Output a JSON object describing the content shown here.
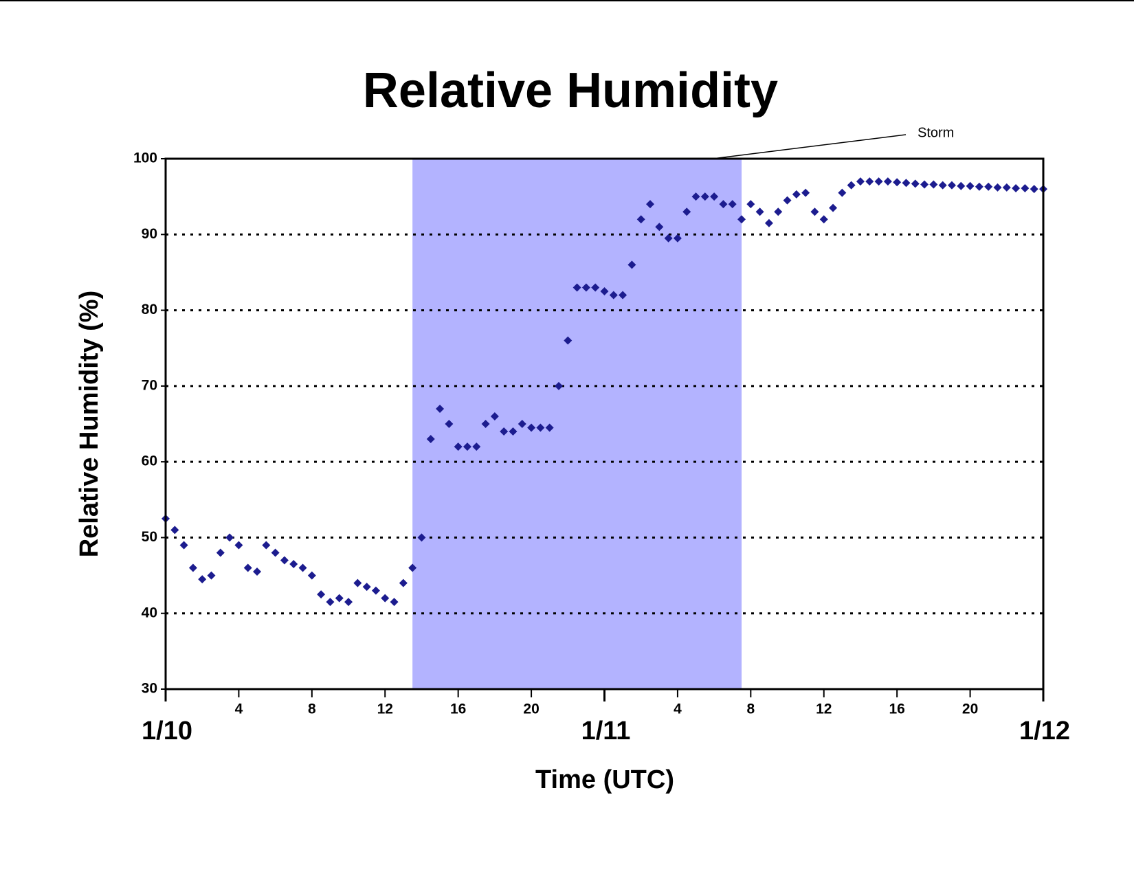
{
  "chart_data": {
    "type": "scatter",
    "title": "Relative Humidity",
    "y_label": "Relative Humidity (%)",
    "x_label": "Time (UTC)",
    "annotation": "Storm",
    "storm_range": [
      13.5,
      31.5
    ],
    "storm_color": "#b3b3ff",
    "xlim": [
      0,
      48
    ],
    "ylim": [
      30,
      100
    ],
    "yticks": [
      30,
      40,
      50,
      60,
      70,
      80,
      90,
      100
    ],
    "grid": true,
    "xticks": [
      4,
      8,
      12,
      16,
      20,
      {
        "value": 28,
        "label": "4"
      },
      {
        "value": 32,
        "label": "8"
      },
      {
        "value": 36,
        "label": "12"
      },
      {
        "value": 40,
        "label": "16"
      },
      {
        "value": 44,
        "label": "20"
      }
    ],
    "day_ticks": [
      {
        "value": 0,
        "label": "1/10"
      },
      {
        "value": 24,
        "label": "1/11"
      },
      {
        "value": 48,
        "label": "1/12"
      }
    ],
    "series": [
      {
        "name": "Relative Humidity",
        "color": "#1c1c8f",
        "x": [
          0,
          0.5,
          1,
          1.5,
          2,
          2.5,
          3,
          3.5,
          4,
          4.5,
          5,
          5.5,
          6,
          6.5,
          7,
          7.5,
          8,
          8.5,
          9,
          9.5,
          10,
          10.5,
          11,
          11.5,
          12,
          12.5,
          13,
          13.5,
          14,
          14.5,
          15,
          15.5,
          16,
          16.5,
          17,
          17.5,
          18,
          18.5,
          19,
          19.5,
          20,
          20.5,
          21,
          21.5,
          22,
          22.5,
          23,
          23.5,
          24,
          24.5,
          25,
          25.5,
          26,
          26.5,
          27,
          27.5,
          28,
          28.5,
          29,
          29.5,
          30,
          30.5,
          31,
          31.5,
          32,
          32.5,
          33,
          33.5,
          34,
          34.5,
          35,
          35.5,
          36,
          36.5,
          37,
          37.5,
          38,
          38.5,
          39,
          39.5,
          40,
          40.5,
          41,
          41.5,
          42,
          42.5,
          43,
          43.5,
          44,
          44.5,
          45,
          45.5,
          46,
          46.5,
          47,
          47.5,
          48
        ],
        "values": [
          52.5,
          51,
          49,
          46,
          44.5,
          45,
          48,
          50,
          49,
          46,
          45.5,
          49,
          48,
          47,
          46.5,
          46,
          45,
          42.5,
          41.5,
          42,
          41.5,
          44,
          43.5,
          43,
          42,
          41.5,
          44,
          46,
          50,
          63,
          67,
          65,
          62,
          62,
          62,
          65,
          66,
          64,
          64,
          65,
          64.5,
          64.5,
          64.5,
          70,
          76,
          83,
          83,
          83,
          82.5,
          82,
          82,
          86,
          92,
          94,
          91,
          89.5,
          89.5,
          93,
          95,
          95,
          95,
          94,
          94,
          92,
          94,
          93,
          91.5,
          93,
          94.5,
          95.3,
          95.5,
          93,
          92,
          93.5,
          95.5,
          96.5,
          97,
          97,
          97,
          97,
          96.9,
          96.8,
          96.7,
          96.6,
          96.6,
          96.5,
          96.5,
          96.4,
          96.4,
          96.3,
          96.3,
          96.2,
          96.2,
          96.1,
          96.1,
          96,
          96
        ]
      }
    ]
  }
}
